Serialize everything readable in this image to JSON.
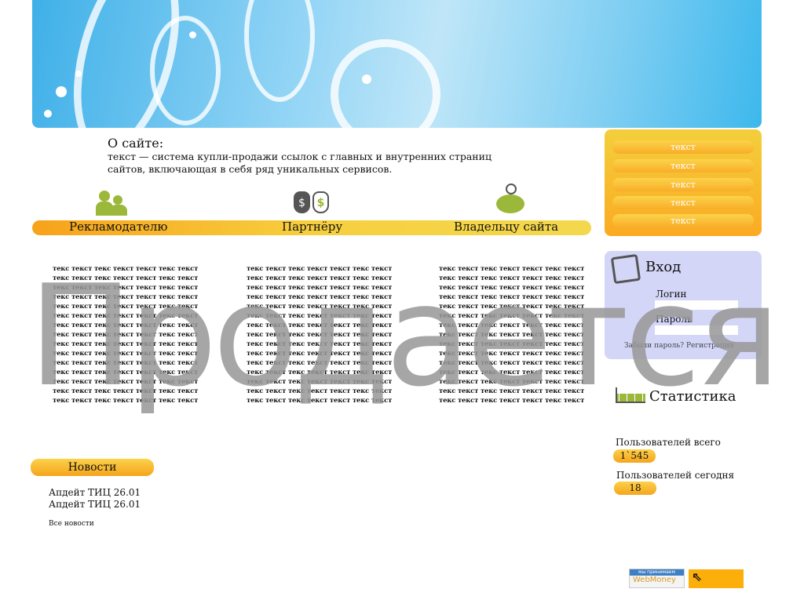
{
  "about": {
    "title": "О сайте:",
    "text": "текст — система купли-продажи ссылок с главных и внутренних страниц сайтов, включающая в себя ряд уникальных сервисов."
  },
  "roles": [
    {
      "label": "Рекламодателю",
      "icon": "users-icon"
    },
    {
      "label": "Партнёру",
      "icon": "money-bags-icon"
    },
    {
      "label": "Владельцу сайта",
      "icon": "piggy-bank-icon"
    }
  ],
  "column_line": "текс текст текс текст текст текс текст",
  "menu": [
    "текст",
    "текст",
    "текст",
    "текст",
    "текст"
  ],
  "login": {
    "title": "Вход",
    "login_label": "Логин",
    "password_label": "Пароль",
    "forgot": "Забыли пароль?",
    "register": "Регистрация"
  },
  "stats": {
    "title": "Статистика",
    "total_label": "Пользователей всего",
    "total_value": "1`545",
    "today_label": "Пользователей сегодня",
    "today_value": "18"
  },
  "news": {
    "title": "Новости",
    "items": [
      "Апдейт ТИЦ 26.01",
      "Апдейт ТИЦ 26.01"
    ],
    "all": "Все новости"
  },
  "watermark": "Продается",
  "webmoney": {
    "top": "мы принимаем",
    "brand": "WebMoney"
  },
  "colors": {
    "accent": "#f7a21b",
    "login_bg": "#d4d6f8",
    "banner": "#5cc2ee"
  }
}
